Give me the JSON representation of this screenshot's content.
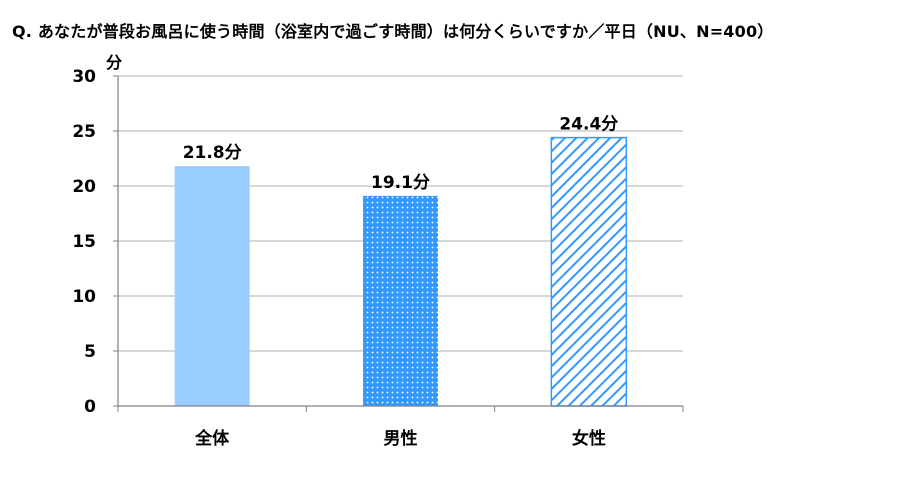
{
  "question": "Q. あなたが普段お風呂に使う時間（浴室内で過ごす時間）は何分くらいですか／平日（NU、N=400）",
  "colors": {
    "bar_fill": "#99ccff",
    "bar_dot_bg": "#3399ff",
    "bar_dot": "#ffffff",
    "bar_hatch": "#3399ff",
    "grid": "#b0b0b0",
    "axis": "#808080"
  },
  "chart_data": {
    "type": "bar",
    "categories": [
      "全体",
      "男性",
      "女性"
    ],
    "values": [
      21.8,
      19.1,
      24.4
    ],
    "data_labels": [
      "21.8分",
      "19.1分",
      "24.4分"
    ],
    "patterns": [
      "solid",
      "dotted",
      "diagonal-hatch"
    ],
    "ylabel": "分",
    "ylim": [
      0,
      30
    ],
    "yticks": [
      0,
      5,
      10,
      15,
      20,
      25,
      30
    ],
    "grid": true
  }
}
